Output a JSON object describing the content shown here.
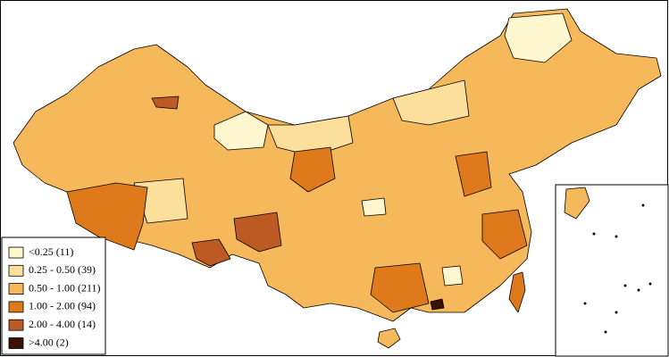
{
  "legend": {
    "items": [
      {
        "label": "<0.25 (11)",
        "color": "#fff7cf"
      },
      {
        "label": "0.25 - 0.50 (39)",
        "color": "#fbdf9b"
      },
      {
        "label": "0.50 - 1.00 (211)",
        "color": "#f5b85a"
      },
      {
        "label": "1.00 - 2.00 (94)",
        "color": "#de7a1c"
      },
      {
        "label": "2.00 - 4.00 (14)",
        "color": "#bd5a24"
      },
      {
        "label": ">4.00 (2)",
        "color": "#3a1307"
      }
    ]
  }
}
